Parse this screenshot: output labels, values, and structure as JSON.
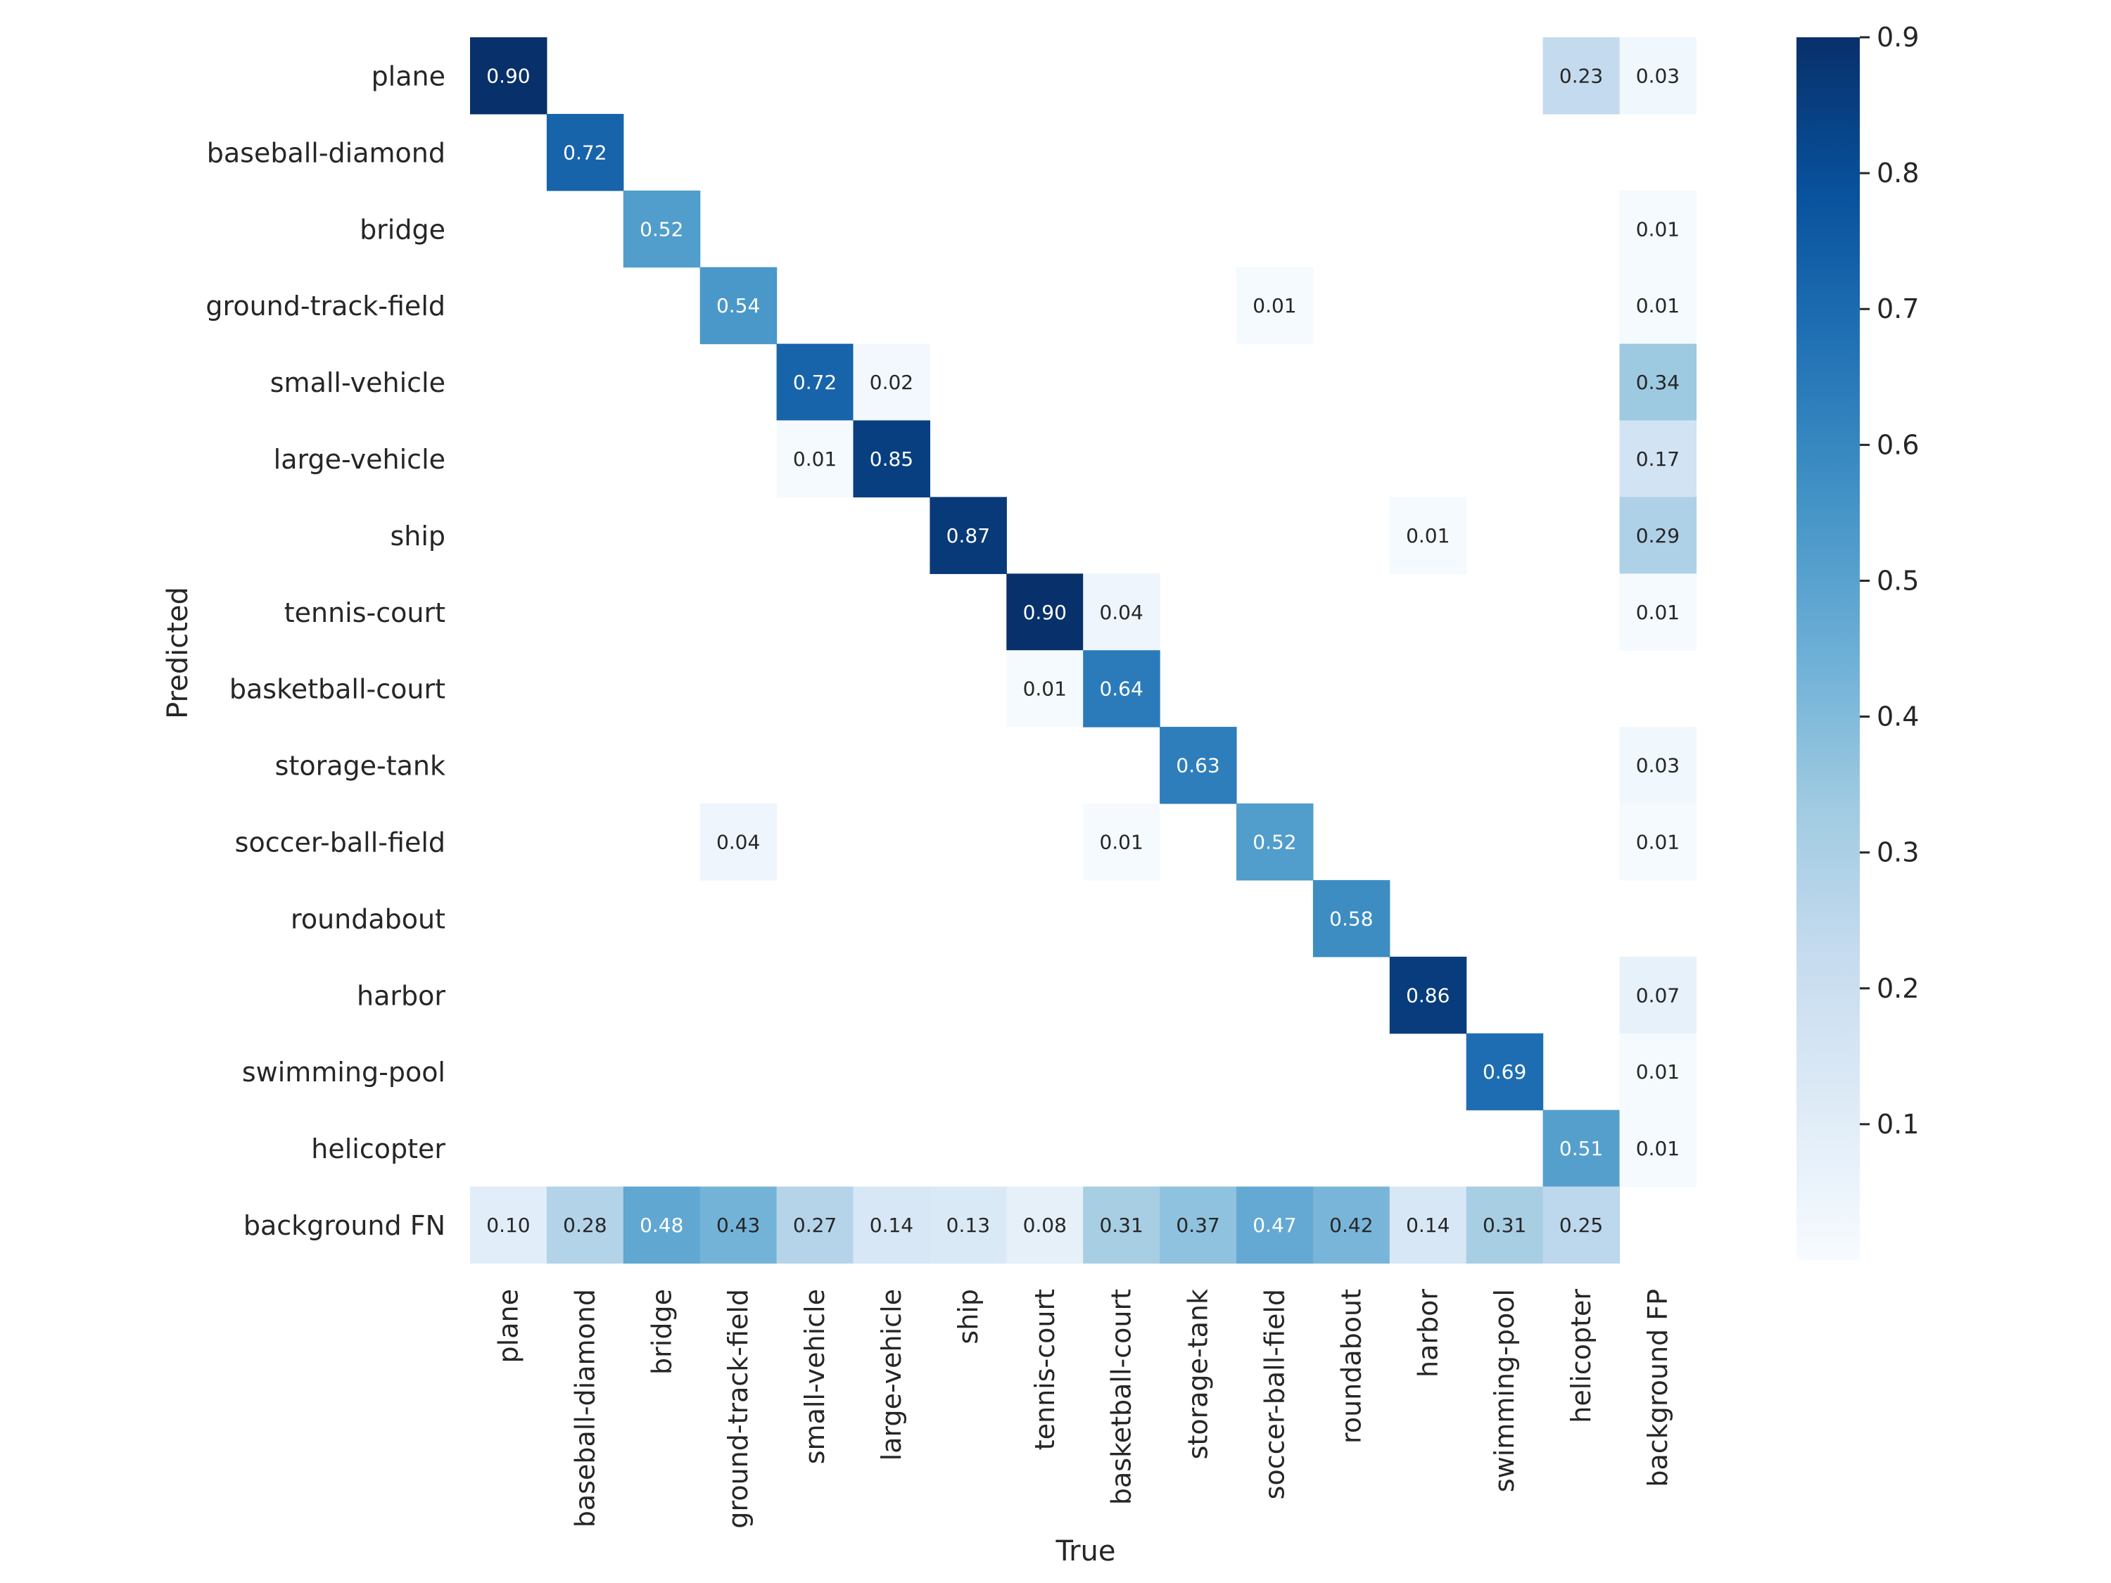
{
  "chart_data": {
    "type": "heatmap",
    "title": "",
    "xlabel": "True",
    "ylabel": "Predicted",
    "x_categories": [
      "plane",
      "baseball-diamond",
      "bridge",
      "ground-track-field",
      "small-vehicle",
      "large-vehicle",
      "ship",
      "tennis-court",
      "basketball-court",
      "storage-tank",
      "soccer-ball-field",
      "roundabout",
      "harbor",
      "swimming-pool",
      "helicopter",
      "background FP"
    ],
    "y_categories": [
      "plane",
      "baseball-diamond",
      "bridge",
      "ground-track-field",
      "small-vehicle",
      "large-vehicle",
      "ship",
      "tennis-court",
      "basketball-court",
      "storage-tank",
      "soccer-ball-field",
      "roundabout",
      "harbor",
      "swimming-pool",
      "helicopter",
      "background FN"
    ],
    "values": [
      [
        0.9,
        null,
        null,
        null,
        null,
        null,
        null,
        null,
        null,
        null,
        null,
        null,
        null,
        null,
        0.23,
        0.03
      ],
      [
        null,
        0.72,
        null,
        null,
        null,
        null,
        null,
        null,
        null,
        null,
        null,
        null,
        null,
        null,
        null,
        null
      ],
      [
        null,
        null,
        0.52,
        null,
        null,
        null,
        null,
        null,
        null,
        null,
        null,
        null,
        null,
        null,
        null,
        0.01
      ],
      [
        null,
        null,
        null,
        0.54,
        null,
        null,
        null,
        null,
        null,
        null,
        0.01,
        null,
        null,
        null,
        null,
        0.01
      ],
      [
        null,
        null,
        null,
        null,
        0.72,
        0.02,
        null,
        null,
        null,
        null,
        null,
        null,
        null,
        null,
        null,
        0.34
      ],
      [
        null,
        null,
        null,
        null,
        0.01,
        0.85,
        null,
        null,
        null,
        null,
        null,
        null,
        null,
        null,
        null,
        0.17
      ],
      [
        null,
        null,
        null,
        null,
        null,
        null,
        0.87,
        null,
        null,
        null,
        null,
        null,
        0.01,
        null,
        null,
        0.29
      ],
      [
        null,
        null,
        null,
        null,
        null,
        null,
        null,
        0.9,
        0.04,
        null,
        null,
        null,
        null,
        null,
        null,
        0.01
      ],
      [
        null,
        null,
        null,
        null,
        null,
        null,
        null,
        0.01,
        0.64,
        null,
        null,
        null,
        null,
        null,
        null,
        null
      ],
      [
        null,
        null,
        null,
        null,
        null,
        null,
        null,
        null,
        null,
        0.63,
        null,
        null,
        null,
        null,
        null,
        0.03
      ],
      [
        null,
        null,
        null,
        0.04,
        null,
        null,
        null,
        null,
        0.01,
        null,
        0.52,
        null,
        null,
        null,
        null,
        0.01
      ],
      [
        null,
        null,
        null,
        null,
        null,
        null,
        null,
        null,
        null,
        null,
        null,
        0.58,
        null,
        null,
        null,
        null
      ],
      [
        null,
        null,
        null,
        null,
        null,
        null,
        null,
        null,
        null,
        null,
        null,
        null,
        0.86,
        null,
        null,
        0.07
      ],
      [
        null,
        null,
        null,
        null,
        null,
        null,
        null,
        null,
        null,
        null,
        null,
        null,
        null,
        0.69,
        null,
        0.01
      ],
      [
        null,
        null,
        null,
        null,
        null,
        null,
        null,
        null,
        null,
        null,
        null,
        null,
        null,
        null,
        0.51,
        0.01
      ],
      [
        0.1,
        0.28,
        0.48,
        0.43,
        0.27,
        0.14,
        0.13,
        0.08,
        0.31,
        0.37,
        0.47,
        0.42,
        0.14,
        0.31,
        0.25,
        null
      ]
    ],
    "colorscale": "Blues",
    "colorbar": {
      "range": [
        0.0,
        0.9
      ],
      "ticks": [
        0.1,
        0.2,
        0.3,
        0.4,
        0.5,
        0.6,
        0.7,
        0.8,
        0.9
      ],
      "tick_labels": [
        "0.1",
        "0.2",
        "0.3",
        "0.4",
        "0.5",
        "0.6",
        "0.7",
        "0.8",
        "0.9"
      ]
    },
    "grid": false,
    "legend": "colorbar-right"
  }
}
